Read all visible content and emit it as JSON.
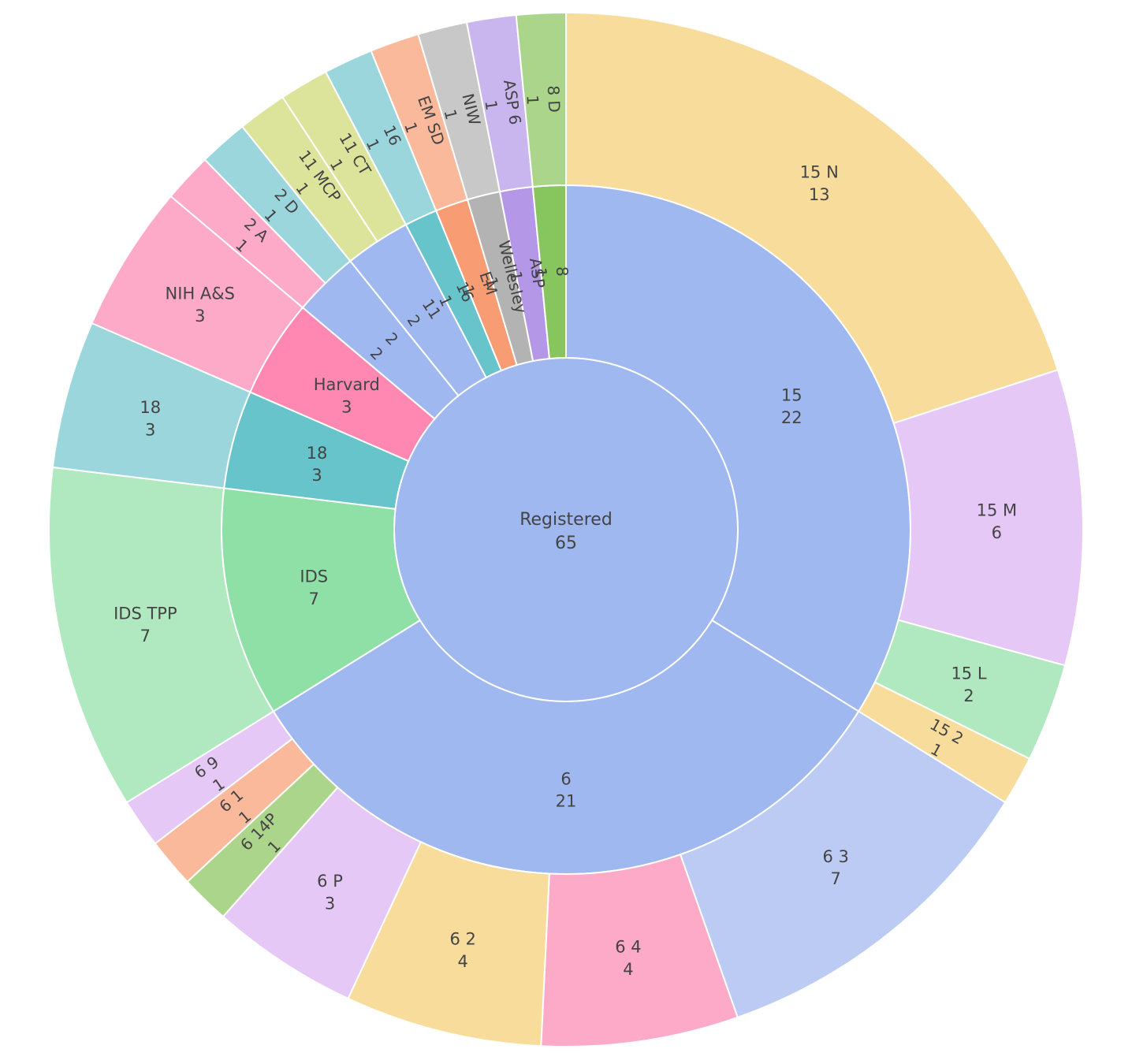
{
  "chart_data": {
    "type": "sunburst",
    "root": {
      "name": "Registered",
      "value": 65,
      "color": "#9fb8f0"
    },
    "rings": [
      [
        {
          "name": "15",
          "value": 22,
          "color": "#9fb8f0",
          "children": [
            {
              "name": "15 N",
              "value": 13,
              "color": "#f8dc9c"
            },
            {
              "name": "15 M",
              "value": 6,
              "color": "#e6c8f6"
            },
            {
              "name": "15 L",
              "value": 2,
              "color": "#b0e8c0"
            },
            {
              "name": "15 2",
              "value": 1,
              "color": "#f8dc9c"
            }
          ]
        },
        {
          "name": "6",
          "value": 21,
          "color": "#9fb8f0",
          "children": [
            {
              "name": "6 3",
              "value": 7,
              "color": "#bccbf4"
            },
            {
              "name": "6 4",
              "value": 4,
              "color": "#fda9c8"
            },
            {
              "name": "6 2",
              "value": 4,
              "color": "#f8dc9c"
            },
            {
              "name": "6 P",
              "value": 3,
              "color": "#e6c8f6"
            },
            {
              "name": "6 14P",
              "value": 1,
              "color": "#acd58c"
            },
            {
              "name": "6 1",
              "value": 1,
              "color": "#fbb99c"
            },
            {
              "name": "6 9",
              "value": 1,
              "color": "#e6c8f6"
            }
          ]
        },
        {
          "name": "IDS",
          "value": 7,
          "color": "#8fe0a6",
          "children": [
            {
              "name": "IDS TPP",
              "value": 7,
              "color": "#b0e8c0"
            }
          ]
        },
        {
          "name": "18",
          "value": 3,
          "color": "#66c4ca",
          "children": [
            {
              "name": "18",
              "value": 3,
              "color": "#9ad6dc"
            }
          ]
        },
        {
          "name": "Harvard",
          "value": 3,
          "color": "#fe88b1",
          "children": [
            {
              "name": "NIH A&S",
              "value": 3,
              "color": "#fda9c8"
            }
          ]
        },
        {
          "name": "2",
          "value": 2,
          "color": "#9fb8f0",
          "children": [
            {
              "name": "2 A",
              "value": 1,
              "color": "#fda9c8"
            },
            {
              "name": "2 D",
              "value": 1,
              "color": "#9ad6dc"
            }
          ]
        },
        {
          "name": "11",
          "value": 2,
          "color": "#9fb8f0",
          "children": [
            {
              "name": "11 MCP",
              "value": 1,
              "color": "#dce49c"
            },
            {
              "name": "11 CT",
              "value": 1,
              "color": "#dce49c"
            }
          ]
        },
        {
          "name": "16",
          "value": 1,
          "color": "#66c4ca",
          "children": [
            {
              "name": "16",
              "value": 1,
              "color": "#9ad6dc"
            }
          ]
        },
        {
          "name": "EM",
          "value": 1,
          "color": "#f89c74",
          "children": [
            {
              "name": "EM SD",
              "value": 1,
              "color": "#fbb99c"
            }
          ]
        },
        {
          "name": "Wellesley",
          "value": 1,
          "color": "#b3b3b3",
          "children": [
            {
              "name": "NIW",
              "value": 1,
              "color": "#c8c8c8"
            }
          ]
        },
        {
          "name": "ASP",
          "value": 1,
          "color": "#b497e7",
          "children": [
            {
              "name": "ASP 6",
              "value": 1,
              "color": "#c9b6ef"
            }
          ]
        },
        {
          "name": "8",
          "value": 1,
          "color": "#87c55f",
          "children": [
            {
              "name": "8 D",
              "value": 1,
              "color": "#acd58c"
            }
          ]
        }
      ]
    ]
  }
}
